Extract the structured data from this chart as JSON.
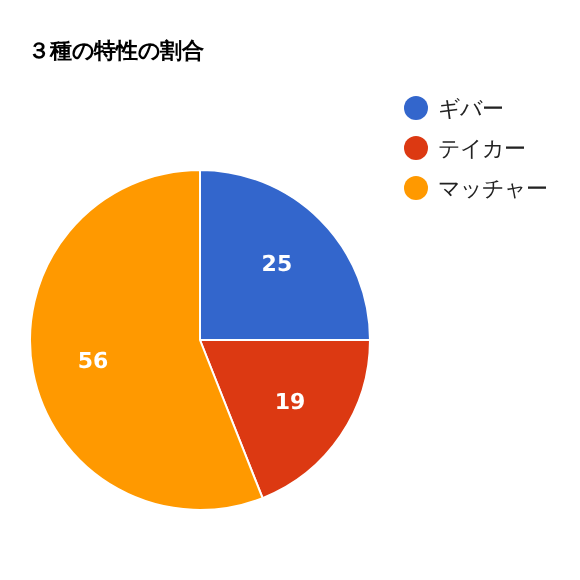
{
  "chart_data": {
    "type": "pie",
    "title": "３種の特性の割合",
    "categories": [
      "ギバー",
      "テイカー",
      "マッチャー"
    ],
    "values": [
      25,
      19,
      56
    ],
    "colors": [
      "#3366cc",
      "#dc3912",
      "#ff9900"
    ],
    "data_labels": true,
    "legend": "top right"
  }
}
